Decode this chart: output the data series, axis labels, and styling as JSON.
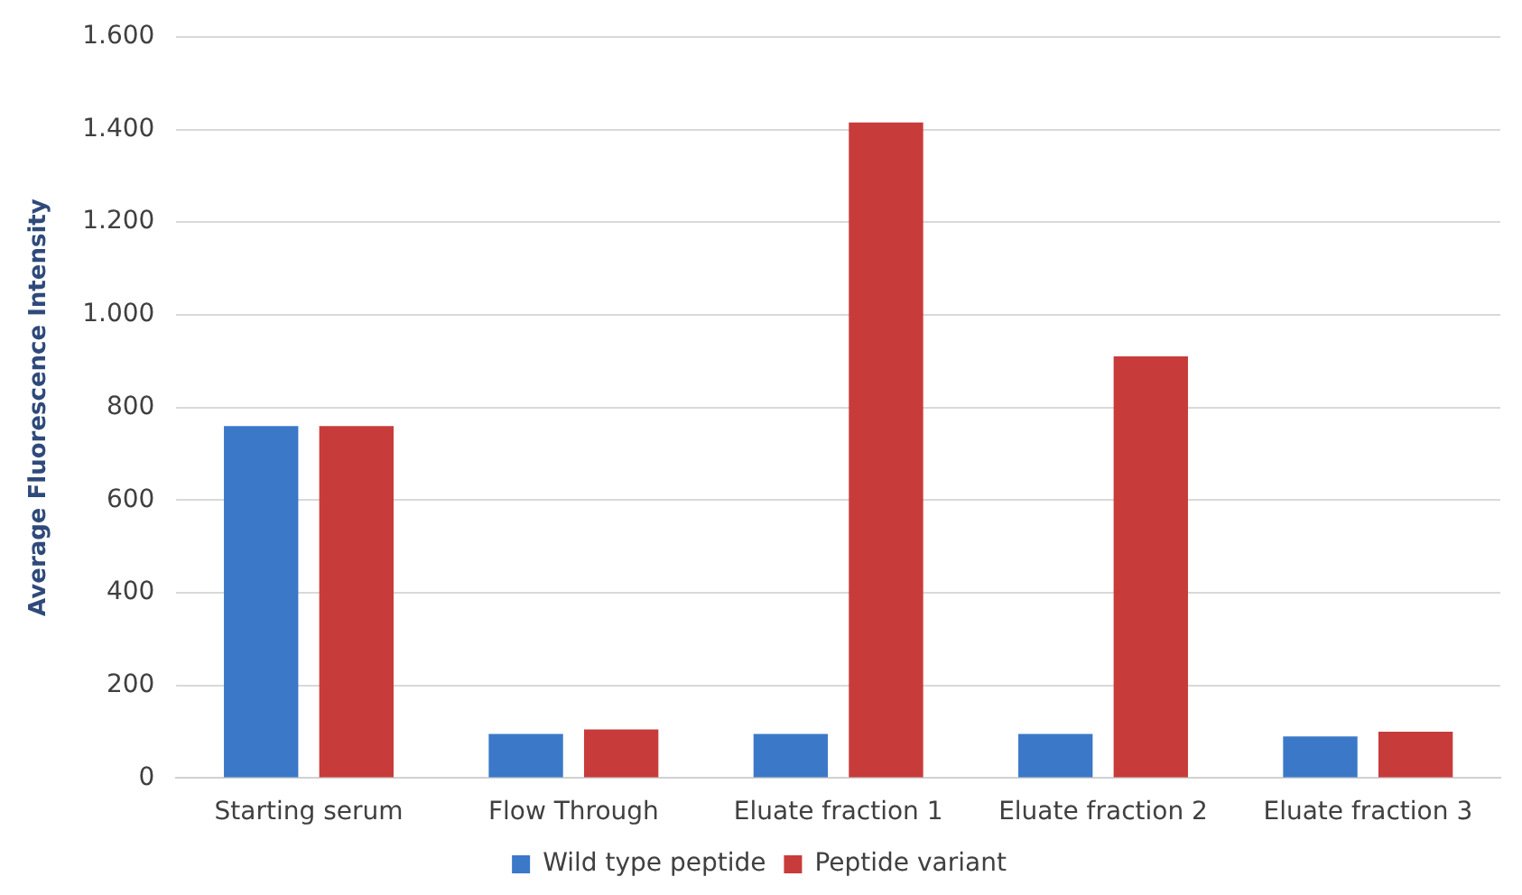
{
  "chart_data": {
    "type": "bar",
    "ylabel": "Average Fluorescence Intensity",
    "categories": [
      "Starting serum",
      "Flow Through",
      "Eluate fraction 1",
      "Eluate fraction 2",
      "Eluate fraction 3"
    ],
    "series": [
      {
        "name": "Wild type peptide",
        "color": "#3b78c8",
        "values": [
          760,
          95,
          95,
          95,
          90
        ]
      },
      {
        "name": "Peptide variant",
        "color": "#c83b3b",
        "values": [
          760,
          105,
          1415,
          910,
          100
        ]
      }
    ],
    "ylim": [
      0,
      1600
    ],
    "yticks": [
      0,
      200,
      400,
      600,
      800,
      {
        "value": 1000,
        "label": "1.000"
      },
      {
        "value": 1200,
        "label": "1.200"
      },
      {
        "value": 1400,
        "label": "1.400"
      },
      {
        "value": 1600,
        "label": "1.600"
      }
    ],
    "grid": "y",
    "legend": "bottom"
  }
}
